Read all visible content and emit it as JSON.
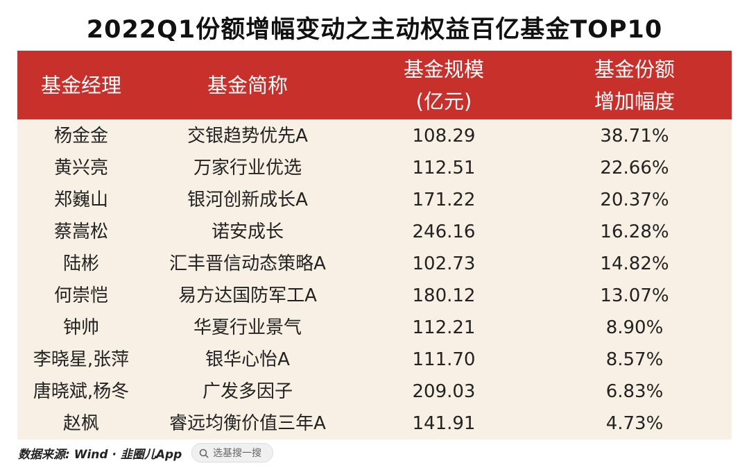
{
  "title": "2022Q1份额增幅变动之主动权益百亿基金TOP10",
  "table": {
    "header": [
      [
        "基金经理"
      ],
      [
        "基金简称"
      ],
      [
        "基金规模",
        "(亿元)"
      ],
      [
        "基金份额",
        "增加幅度"
      ]
    ],
    "rows": [
      [
        "杨金金",
        "交银趋势优先A",
        "108.29",
        "38.71%"
      ],
      [
        "黄兴亮",
        "万家行业优选",
        "112.51",
        "22.66%"
      ],
      [
        "郑巍山",
        "银河创新成长A",
        "171.22",
        "20.37%"
      ],
      [
        "蔡嵩松",
        "诺安成长",
        "246.16",
        "16.28%"
      ],
      [
        "陆彬",
        "汇丰晋信动态策略A",
        "102.73",
        "14.82%"
      ],
      [
        "何崇恺",
        "易方达国防军工A",
        "180.12",
        "13.07%"
      ],
      [
        "钟帅",
        "华夏行业景气",
        "112.21",
        "8.90%"
      ],
      [
        "李晓星,张萍",
        "银华心怡A",
        "111.70",
        "8.57%"
      ],
      [
        "唐晓斌,杨冬",
        "广发多因子",
        "209.03",
        "6.83%"
      ],
      [
        "赵枫",
        "睿远均衡价值三年A",
        "141.91",
        "4.73%"
      ]
    ]
  },
  "footer": {
    "source": "数据来源: Wind · 韭圈儿App",
    "search": "选基搜一搜"
  }
}
